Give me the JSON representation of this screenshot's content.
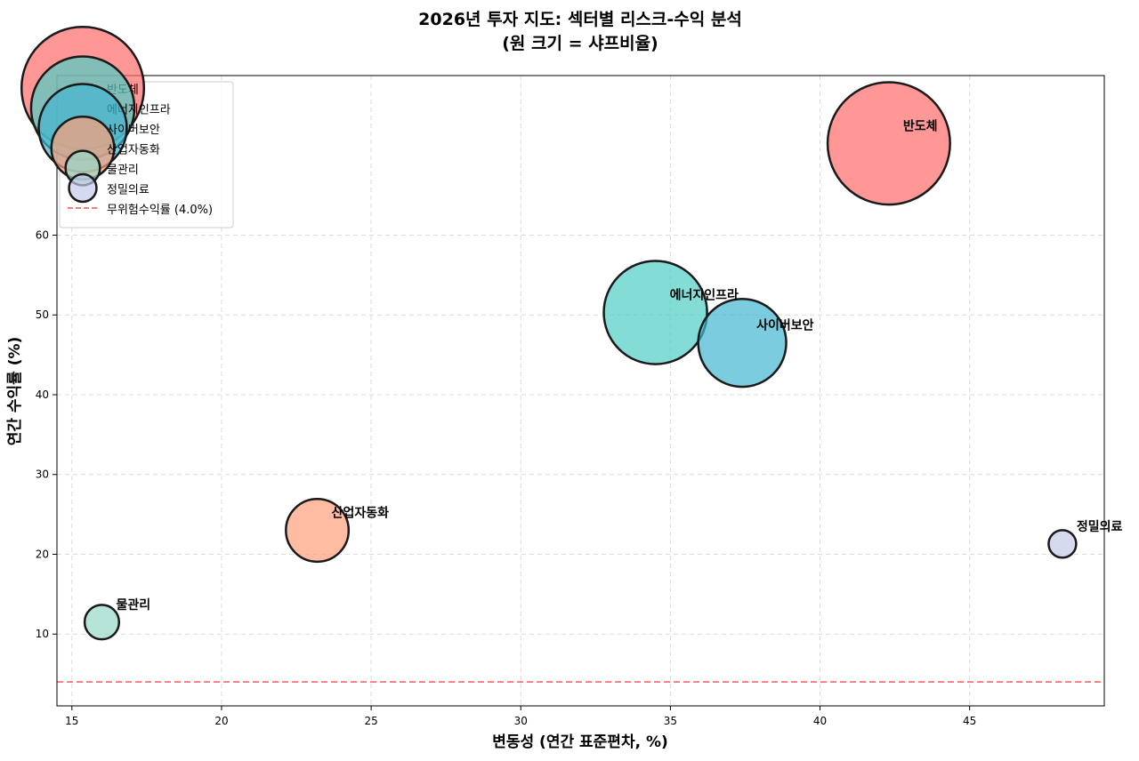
{
  "chart_data": {
    "type": "scatter",
    "title_line1": "2026년 투자 지도: 섹터별 리스크-수익 분석",
    "title_line2": "(원 크기 = 샤프비율)",
    "xlabel": "변동성 (연간 표준편차, %)",
    "ylabel": "연간 수익률 (%)",
    "xlim": [
      14.5,
      49.5
    ],
    "ylim": [
      1,
      80
    ],
    "xticks": [
      15,
      20,
      25,
      30,
      35,
      40,
      45
    ],
    "yticks": [
      10,
      20,
      30,
      40,
      50,
      60
    ],
    "grid": true,
    "legend_position": "upper-left",
    "series": [
      {
        "name": "반도체",
        "x": 42.3,
        "y": 71.5,
        "sharpe": 1.6,
        "color": "#FF6B6B"
      },
      {
        "name": "에너지인프라",
        "x": 34.5,
        "y": 50.3,
        "sharpe": 1.35,
        "color": "#4ECDC4"
      },
      {
        "name": "사이버보안",
        "x": 37.4,
        "y": 46.5,
        "sharpe": 1.15,
        "color": "#45B7D1"
      },
      {
        "name": "산업자동화",
        "x": 23.2,
        "y": 23.0,
        "sharpe": 0.82,
        "color": "#FFA07A"
      },
      {
        "name": "물관리",
        "x": 16.0,
        "y": 11.5,
        "sharpe": 0.45,
        "color": "#98D8C8"
      },
      {
        "name": "정밀의료",
        "x": 48.1,
        "y": 21.3,
        "sharpe": 0.36,
        "color": "#C5CAE9"
      }
    ],
    "reference_line": {
      "label": "무위험수익률 (4.0%)",
      "y": 4.0,
      "color": "#FF4D4D"
    }
  }
}
